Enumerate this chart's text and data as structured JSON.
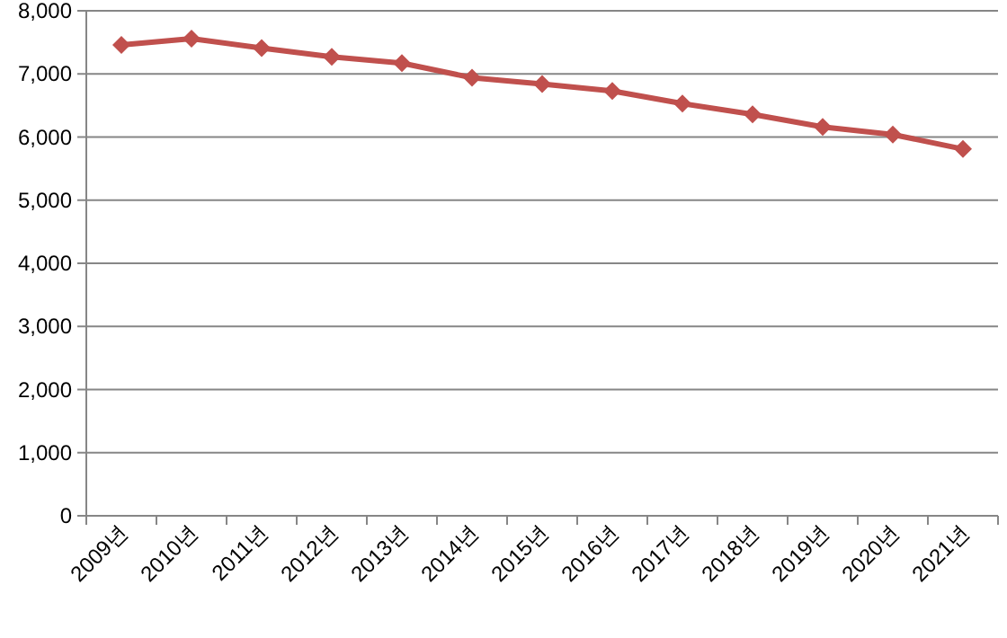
{
  "chart_data": {
    "type": "line",
    "categories": [
      "2009년",
      "2010년",
      "2011년",
      "2012년",
      "2013년",
      "2014년",
      "2015년",
      "2016년",
      "2017년",
      "2018년",
      "2019년",
      "2020년",
      "2021년"
    ],
    "series": [
      {
        "color": "#c0504d",
        "values": [
          7460,
          7560,
          7410,
          7270,
          7170,
          6940,
          6840,
          6730,
          6530,
          6360,
          6160,
          6040,
          5810
        ]
      }
    ],
    "ylim": [
      0,
      8000
    ],
    "yticks": [
      {
        "value": 0,
        "label": "0"
      },
      {
        "value": 1000,
        "label": "1,000"
      },
      {
        "value": 2000,
        "label": "2,000"
      },
      {
        "value": 3000,
        "label": "3,000"
      },
      {
        "value": 4000,
        "label": "4,000"
      },
      {
        "value": 5000,
        "label": "5,000"
      },
      {
        "value": 6000,
        "label": "6,000"
      },
      {
        "value": 7000,
        "label": "7,000"
      },
      {
        "value": 8000,
        "label": "8,000"
      }
    ],
    "grid": "y",
    "marker": "diamond",
    "line_style": "solid"
  }
}
